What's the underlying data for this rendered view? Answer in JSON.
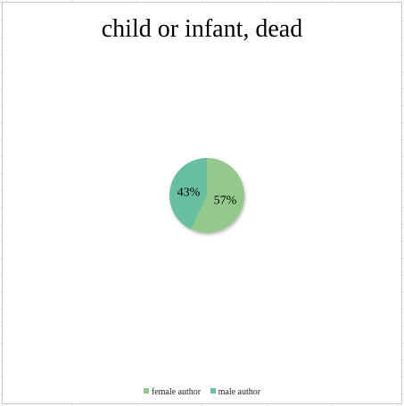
{
  "chart_data": {
    "type": "pie",
    "title": "child or infant, dead",
    "series": [
      {
        "name": "female author",
        "value": 57,
        "label": "57%",
        "color": "#93c98a"
      },
      {
        "name": "male author",
        "value": 43,
        "label": "43%",
        "color": "#67bfa0"
      }
    ],
    "legend_position": "bottom",
    "start_angle_deg": 0,
    "direction": "clockwise"
  }
}
